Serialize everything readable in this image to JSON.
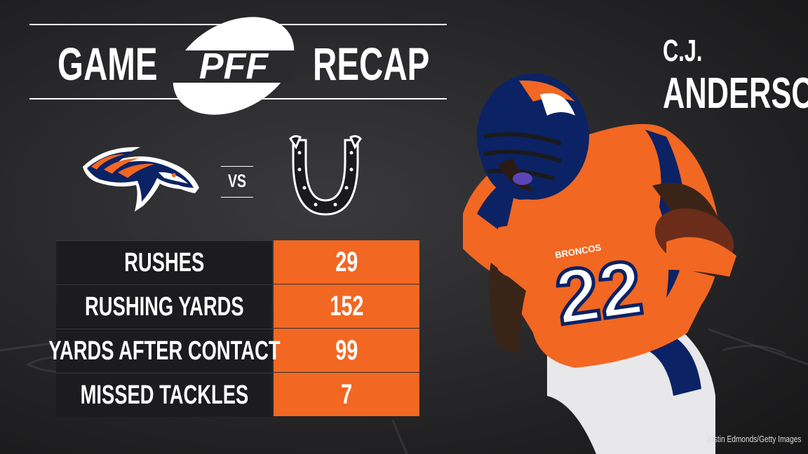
{
  "header": {
    "word_left": "GAME",
    "logo_text": "PFF",
    "word_right": "RECAP"
  },
  "player": {
    "first_name": "C.J.",
    "last_name": "ANDERSON",
    "jersey_number": "22",
    "jersey_text": "BRONCOS"
  },
  "matchup": {
    "vs_label": "VS",
    "home_logo_icon": "broncos-horse-icon",
    "away_logo_icon": "colts-horseshoe-icon"
  },
  "stats": [
    {
      "label": "RUSHES",
      "value": "29"
    },
    {
      "label": "RUSHING YARDS",
      "value": "152"
    },
    {
      "label": "YARDS AFTER CONTACT",
      "value": "99"
    },
    {
      "label": "MISSED TACKLES",
      "value": "7"
    }
  ],
  "credit": "Justin Edmonds/Getty Images",
  "colors": {
    "accent": "#f26722",
    "background": "#2a2a2c",
    "label_bg": "#1c1c1e",
    "broncos_navy": "#0b2265"
  }
}
